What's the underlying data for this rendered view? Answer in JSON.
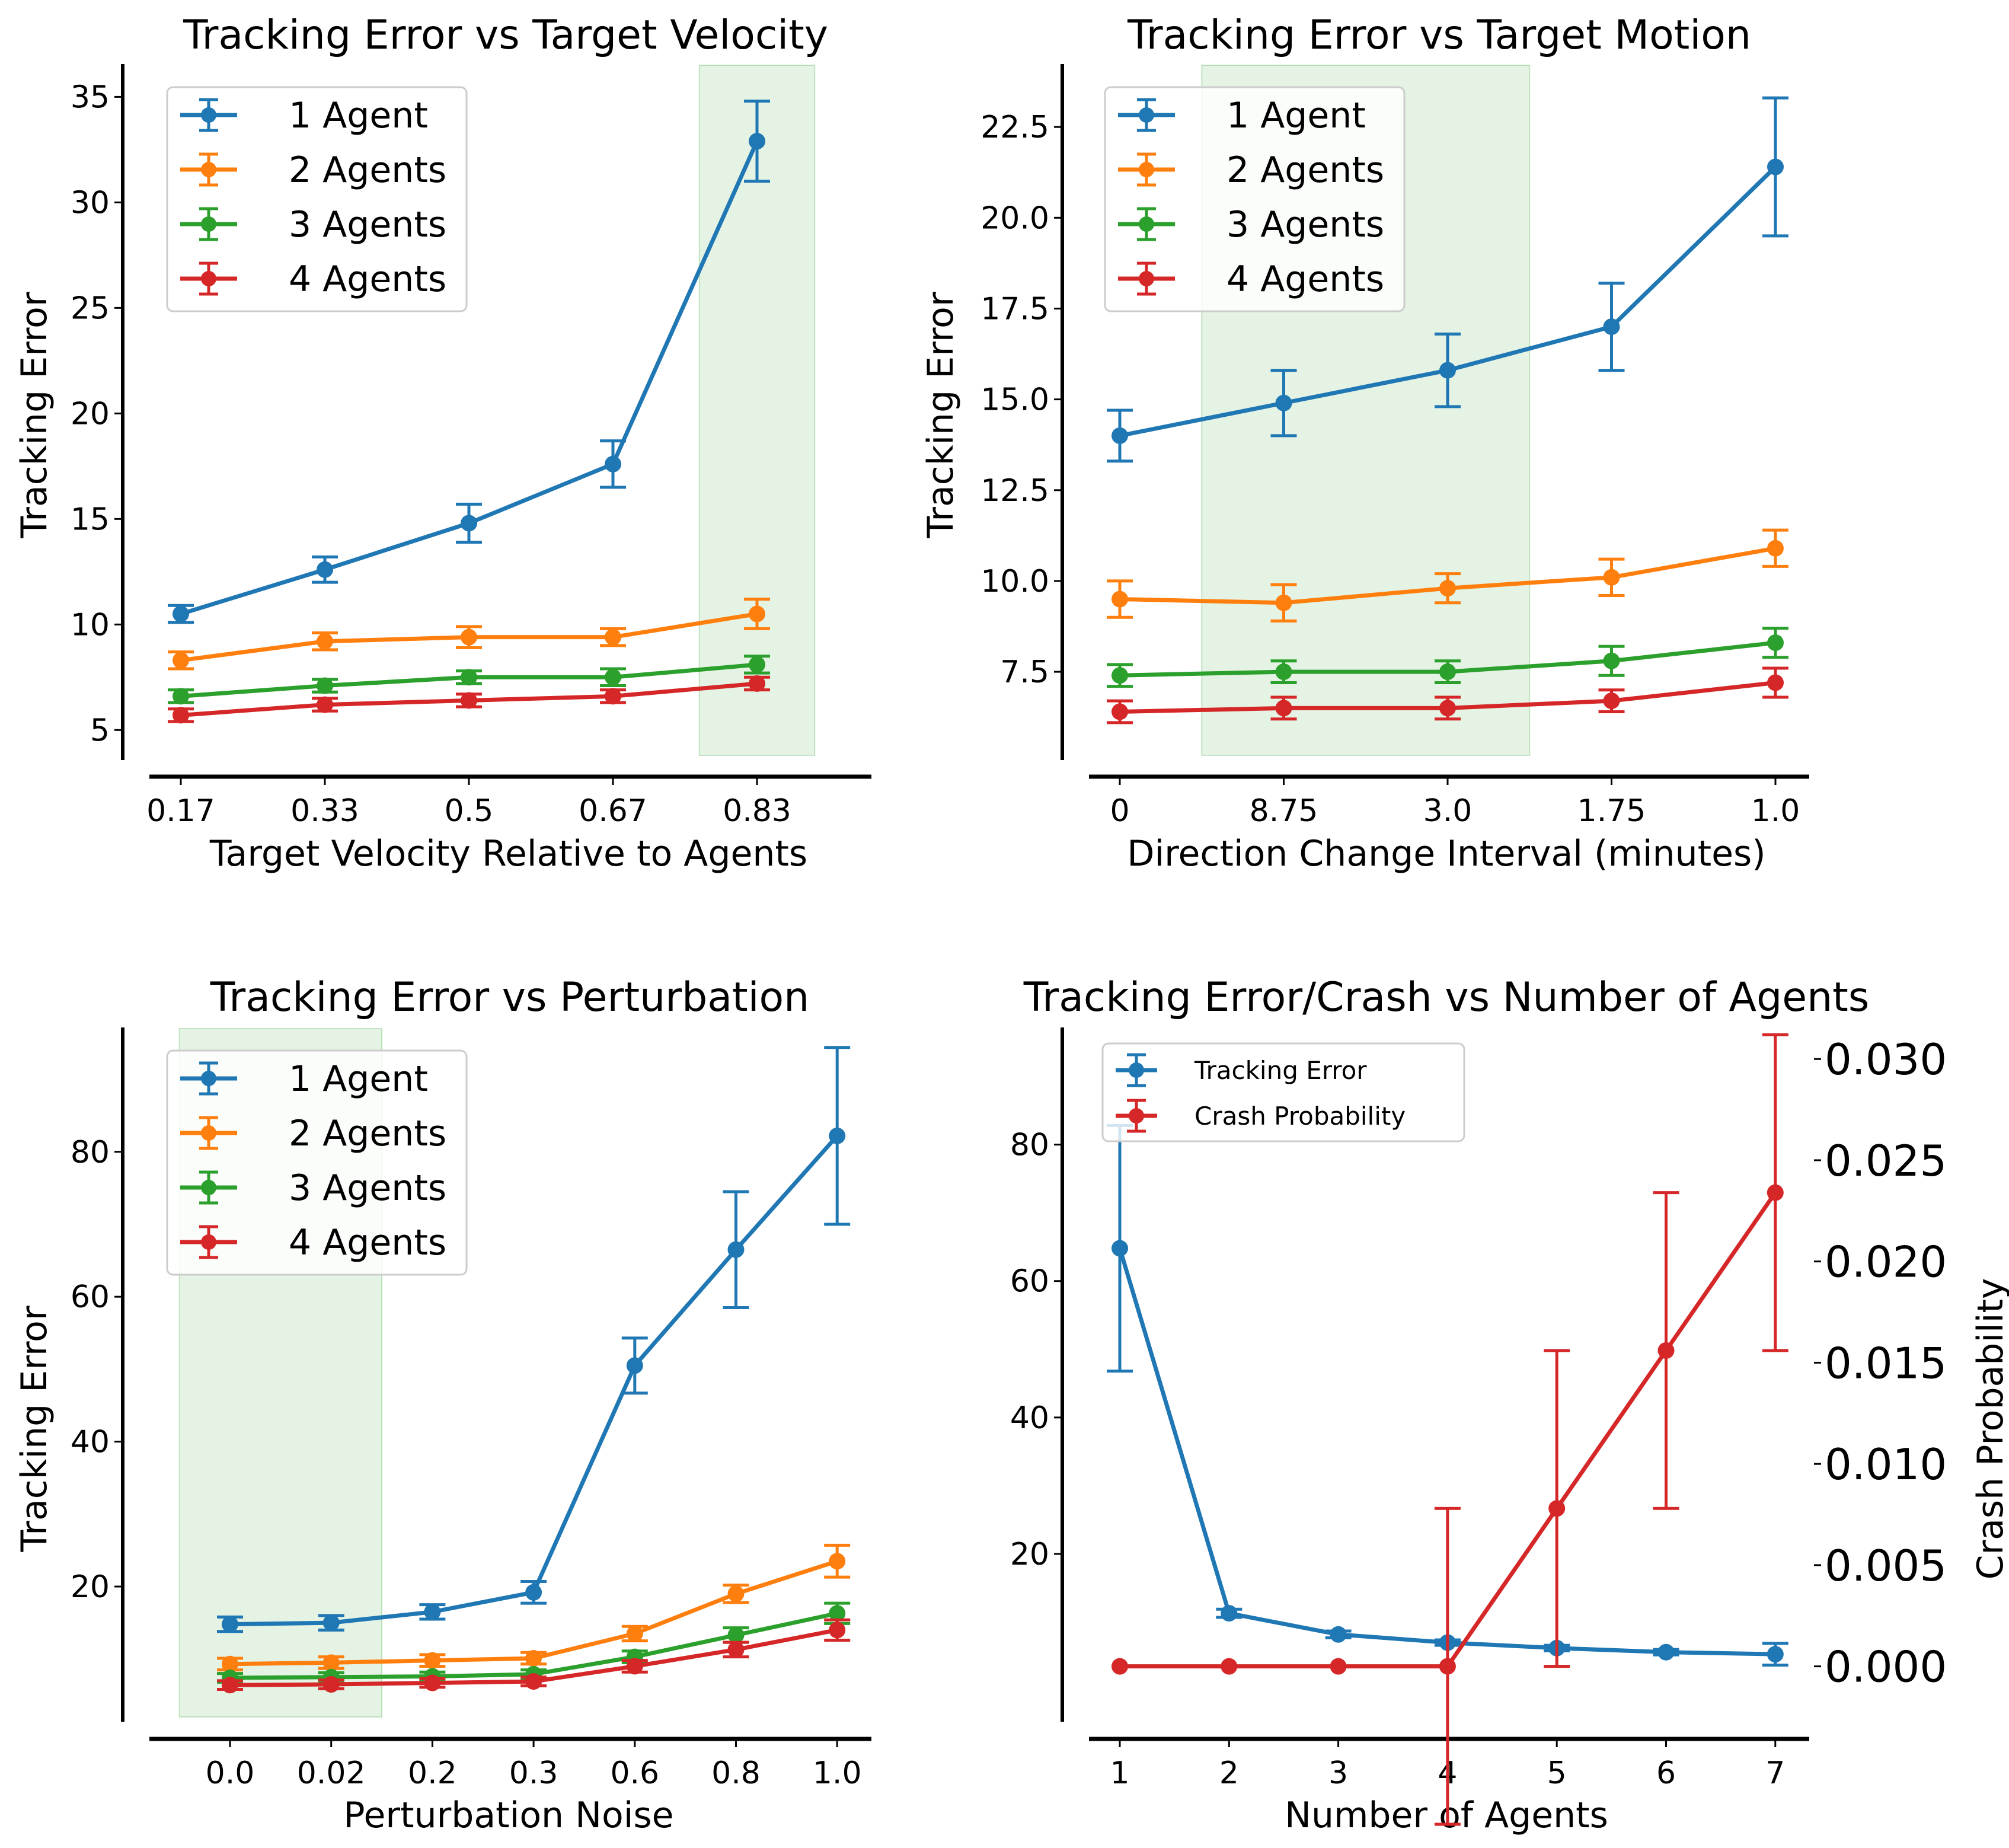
{
  "figure": {
    "colors": {
      "1 Agent": "#1f77b4",
      "2 Agents": "#ff7f0e",
      "3 Agents": "#2ca02c",
      "4 Agents": "#d62728",
      "highlight": "#2ca02c"
    }
  },
  "chart_data": [
    {
      "type": "line",
      "title": "Tracking Error vs Target Velocity",
      "xlabel": "Target Velocity Relative to Agents",
      "ylabel": "Tracking Error",
      "categories": [
        "0.17",
        "0.33",
        "0.5",
        "0.67",
        "0.83"
      ],
      "ylim": [
        3.8,
        36.5
      ],
      "yticks": [
        5,
        10,
        15,
        20,
        25,
        30,
        35
      ],
      "highlight_range": [
        3.6,
        4.4
      ],
      "legend": "upper left",
      "series": [
        {
          "name": "1 Agent",
          "values": [
            10.5,
            12.6,
            14.8,
            17.6,
            32.9
          ],
          "err": [
            0.4,
            0.6,
            0.9,
            1.1,
            1.9
          ]
        },
        {
          "name": "2 Agents",
          "values": [
            8.3,
            9.2,
            9.4,
            9.4,
            10.5
          ],
          "err": [
            0.4,
            0.4,
            0.5,
            0.4,
            0.7
          ]
        },
        {
          "name": "3 Agents",
          "values": [
            6.6,
            7.1,
            7.5,
            7.5,
            8.1
          ],
          "err": [
            0.3,
            0.3,
            0.3,
            0.4,
            0.4
          ]
        },
        {
          "name": "4 Agents",
          "values": [
            5.7,
            6.2,
            6.4,
            6.6,
            7.2
          ],
          "err": [
            0.3,
            0.3,
            0.3,
            0.3,
            0.3
          ]
        }
      ]
    },
    {
      "type": "line",
      "title": "Tracking Error vs Target Motion",
      "xlabel": "Direction Change Interval (minutes)",
      "ylabel": "Tracking Error",
      "categories": [
        "0",
        "8.75",
        "3.0",
        "1.75",
        "1.0"
      ],
      "ylim": [
        5.2,
        24.2
      ],
      "yticks": [
        7.5,
        10.0,
        12.5,
        15.0,
        17.5,
        20.0,
        22.5
      ],
      "highlight_range": [
        0.5,
        2.5
      ],
      "legend": "upper left",
      "series": [
        {
          "name": "1 Agent",
          "values": [
            14.0,
            14.9,
            15.8,
            17.0,
            21.4
          ],
          "err": [
            0.7,
            0.9,
            1.0,
            1.2,
            1.9
          ]
        },
        {
          "name": "2 Agents",
          "values": [
            9.5,
            9.4,
            9.8,
            10.1,
            10.9
          ],
          "err": [
            0.5,
            0.5,
            0.4,
            0.5,
            0.5
          ]
        },
        {
          "name": "3 Agents",
          "values": [
            7.4,
            7.5,
            7.5,
            7.8,
            8.3
          ],
          "err": [
            0.3,
            0.3,
            0.3,
            0.4,
            0.4
          ]
        },
        {
          "name": "4 Agents",
          "values": [
            6.4,
            6.5,
            6.5,
            6.7,
            7.2
          ],
          "err": [
            0.3,
            0.3,
            0.3,
            0.3,
            0.4
          ]
        }
      ]
    },
    {
      "type": "line",
      "title": "Tracking Error vs Perturbation",
      "xlabel": "Perturbation Noise",
      "ylabel": "Tracking Error",
      "categories": [
        "0.0",
        "0.02",
        "0.2",
        "0.3",
        "0.6",
        "0.8",
        "1.0"
      ],
      "ylim": [
        2,
        97
      ],
      "yticks": [
        20,
        40,
        60,
        80
      ],
      "highlight_range": [
        -0.5,
        1.5
      ],
      "legend": "upper left",
      "series": [
        {
          "name": "1 Agent",
          "values": [
            14.8,
            15.0,
            16.5,
            19.2,
            50.5,
            66.5,
            82.2
          ],
          "err": [
            1.0,
            1.0,
            1.0,
            1.5,
            3.8,
            8.0,
            12.2
          ]
        },
        {
          "name": "2 Agents",
          "values": [
            9.3,
            9.5,
            9.8,
            10.1,
            13.5,
            19.0,
            23.5
          ],
          "err": [
            0.8,
            0.8,
            0.8,
            0.8,
            1.0,
            1.2,
            2.2
          ]
        },
        {
          "name": "3 Agents",
          "values": [
            7.4,
            7.5,
            7.6,
            7.9,
            10.3,
            13.3,
            16.3
          ],
          "err": [
            0.6,
            0.6,
            0.6,
            0.6,
            0.8,
            1.0,
            1.4
          ]
        },
        {
          "name": "4 Agents",
          "values": [
            6.4,
            6.5,
            6.7,
            6.9,
            9.0,
            11.3,
            14.0
          ],
          "err": [
            0.6,
            0.6,
            0.6,
            0.6,
            0.8,
            1.0,
            1.4
          ]
        }
      ]
    },
    {
      "type": "line",
      "title": "Tracking Error/Crash vs Number of Agents",
      "xlabel": "Number of Agents",
      "ylabel": "",
      "ylabel_right": "Crash Probability",
      "categories": [
        "1",
        "2",
        "3",
        "4",
        "5",
        "6",
        "7"
      ],
      "ylim": [
        -3.9,
        97
      ],
      "yticks": [
        20,
        40,
        60,
        80
      ],
      "ylim_right": [
        -0.0025,
        0.0315
      ],
      "yticks_right": [
        "0.000",
        "0.005",
        "0.010",
        "0.015",
        "0.020",
        "0.025",
        "0.030"
      ],
      "legend": "upper left",
      "series": [
        {
          "name": "Tracking Error",
          "axis": "left",
          "values": [
            64.8,
            11.3,
            8.2,
            7.0,
            6.2,
            5.6,
            5.3
          ],
          "err": [
            18.0,
            0.6,
            0.5,
            0.4,
            0.4,
            0.4,
            1.6
          ]
        },
        {
          "name": "Crash Probability",
          "axis": "right",
          "values": [
            0.0,
            0.0,
            0.0,
            0.0,
            0.0078,
            0.0156,
            0.0234
          ],
          "err": [
            0.0,
            0.0,
            0.0,
            0.0078,
            0.0078,
            0.0078,
            0.0078
          ]
        }
      ]
    }
  ]
}
